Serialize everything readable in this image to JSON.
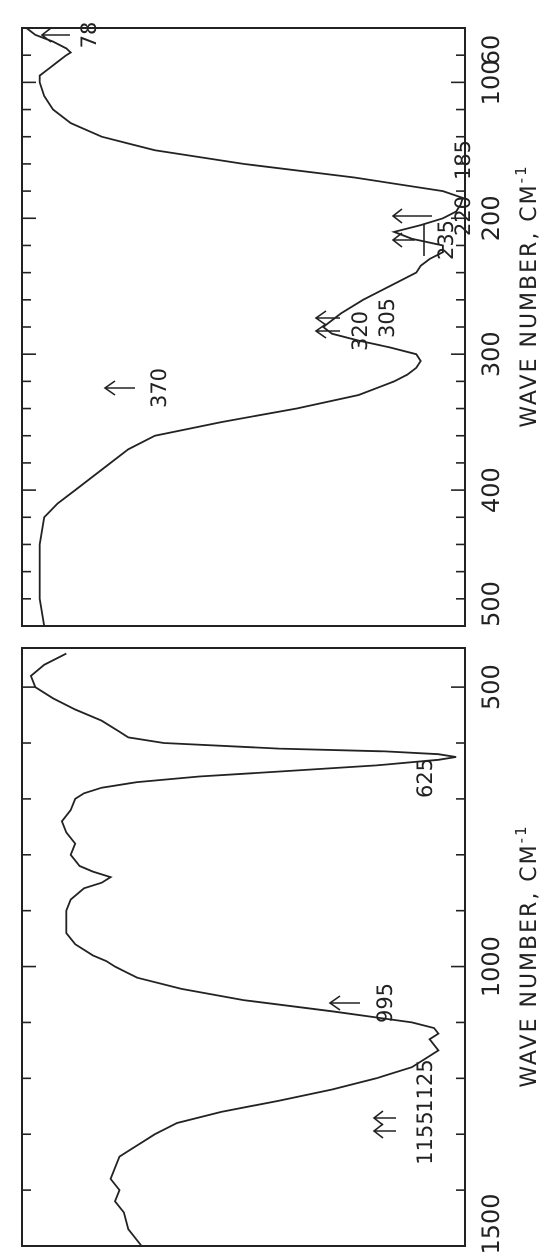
{
  "chart_data": [
    {
      "type": "line",
      "xlabel": "WAVE NUMBER, CM",
      "xlabel_sup": "-1",
      "x_ticks": [
        1500,
        1000,
        500
      ],
      "xlim": [
        1500,
        430
      ],
      "ylim": [
        0,
        1
      ],
      "series": [
        {
          "x": [
            1500,
            1470,
            1440,
            1420,
            1400,
            1380,
            1360,
            1340,
            1320,
            1300,
            1280,
            1260,
            1240,
            1220,
            1200,
            1180,
            1160,
            1150,
            1140,
            1130,
            1120,
            1110,
            1100,
            1080,
            1060,
            1040,
            1020,
            1000,
            990,
            980,
            960,
            940,
            920,
            900,
            880,
            860,
            850,
            840,
            830,
            820,
            800,
            780,
            760,
            740,
            720,
            700,
            690,
            680,
            670,
            660,
            650,
            640,
            630,
            625,
            620,
            615,
            610,
            600,
            590,
            580,
            560,
            540,
            520,
            500,
            480,
            460,
            440
          ],
          "y": [
            0.73,
            0.76,
            0.77,
            0.79,
            0.78,
            0.8,
            0.79,
            0.78,
            0.74,
            0.7,
            0.65,
            0.55,
            0.42,
            0.3,
            0.2,
            0.12,
            0.08,
            0.06,
            0.07,
            0.08,
            0.06,
            0.07,
            0.12,
            0.3,
            0.5,
            0.64,
            0.74,
            0.79,
            0.81,
            0.84,
            0.88,
            0.9,
            0.9,
            0.9,
            0.89,
            0.86,
            0.82,
            0.8,
            0.84,
            0.87,
            0.89,
            0.88,
            0.9,
            0.91,
            0.89,
            0.88,
            0.86,
            0.82,
            0.74,
            0.6,
            0.4,
            0.2,
            0.06,
            0.02,
            0.06,
            0.18,
            0.42,
            0.68,
            0.76,
            0.78,
            0.82,
            0.88,
            0.93,
            0.97,
            0.98,
            0.95,
            0.9
          ]
        }
      ],
      "annotations": [
        "995",
        "1155",
        "1125",
        "625"
      ]
    },
    {
      "type": "line",
      "xlabel": "WAVE NUMBER, CM",
      "xlabel_sup": "-1",
      "x_ticks": [
        500,
        400,
        300,
        200,
        100,
        60
      ],
      "xlim": [
        500,
        60
      ],
      "ylim": [
        0,
        1
      ],
      "series": [
        {
          "x": [
            500,
            480,
            460,
            440,
            420,
            410,
            400,
            390,
            380,
            370,
            360,
            350,
            340,
            330,
            320,
            315,
            310,
            305,
            300,
            295,
            290,
            285,
            280,
            270,
            260,
            250,
            240,
            235,
            230,
            225,
            220,
            215,
            210,
            205,
            200,
            195,
            190,
            185,
            180,
            170,
            160,
            150,
            140,
            130,
            120,
            110,
            100,
            95,
            90,
            85,
            80,
            78,
            75,
            70,
            65,
            60
          ],
          "y": [
            0.95,
            0.96,
            0.96,
            0.96,
            0.95,
            0.92,
            0.88,
            0.84,
            0.8,
            0.76,
            0.7,
            0.55,
            0.38,
            0.24,
            0.16,
            0.13,
            0.11,
            0.1,
            0.11,
            0.17,
            0.24,
            0.3,
            0.32,
            0.28,
            0.23,
            0.17,
            0.11,
            0.1,
            0.08,
            0.05,
            0.05,
            0.12,
            0.16,
            0.1,
            0.05,
            0.02,
            0.01,
            0.005,
            0.05,
            0.25,
            0.5,
            0.7,
            0.82,
            0.89,
            0.93,
            0.95,
            0.96,
            0.96,
            0.94,
            0.92,
            0.9,
            0.89,
            0.9,
            0.93,
            0.97,
            0.99
          ]
        }
      ],
      "annotations": [
        "370",
        "320",
        "305",
        "235",
        "220",
        "185",
        "78"
      ]
    }
  ]
}
